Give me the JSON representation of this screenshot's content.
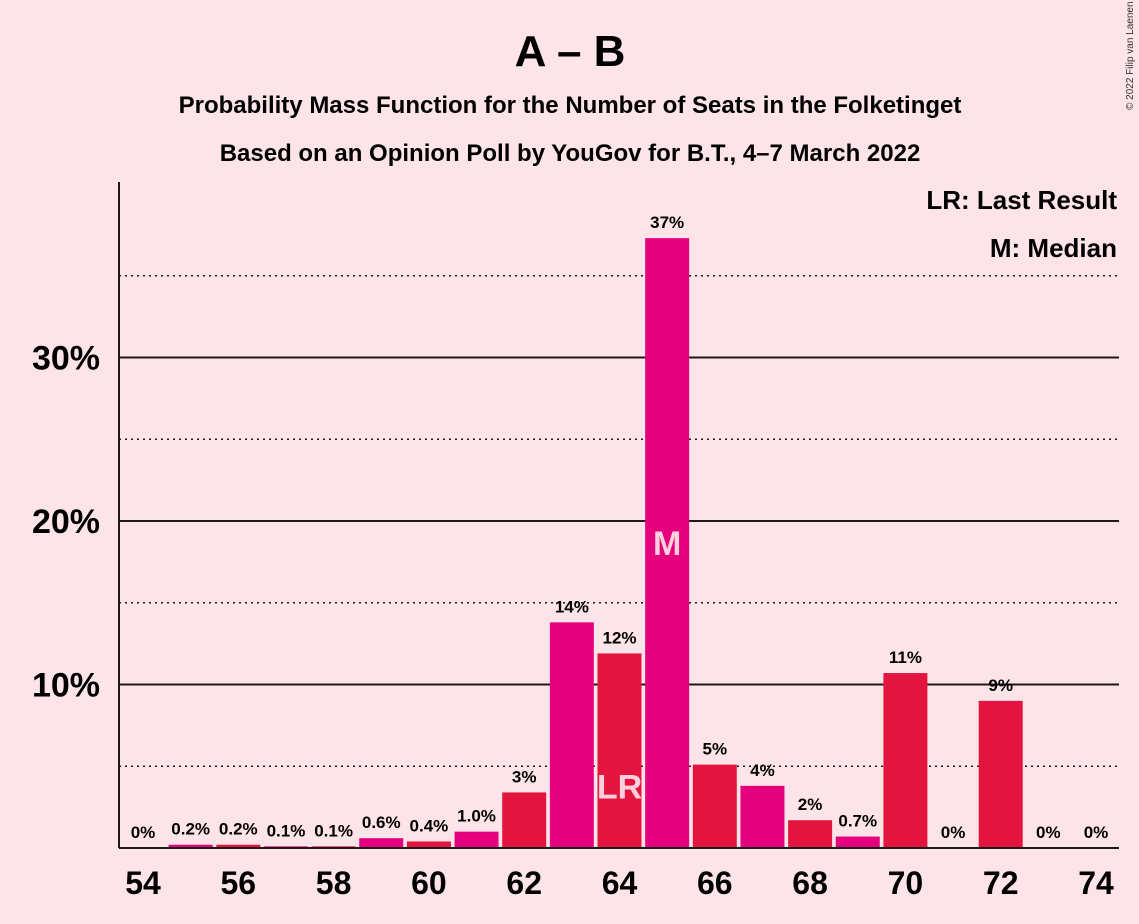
{
  "title": "A – B",
  "subtitle1": "Probability Mass Function for the Number of Seats in the Folketinget",
  "subtitle2": "Based on an Opinion Poll by YouGov for B.T., 4–7 March 2022",
  "copyright": "© 2022 Filip van Laenen",
  "legend": {
    "last_result": "LR: Last Result",
    "median": "M: Median"
  },
  "colors": {
    "background": "#fde4e8",
    "bar_magenta": "#e5007e",
    "bar_red": "#e3143d",
    "marker_text": "#ffd0dc"
  },
  "chart_data": {
    "type": "bar",
    "x": [
      54,
      55,
      56,
      57,
      58,
      59,
      60,
      61,
      62,
      63,
      64,
      65,
      66,
      67,
      68,
      69,
      70,
      71,
      72,
      73,
      74
    ],
    "values": [
      0,
      0.2,
      0.2,
      0.1,
      0.1,
      0.6,
      0.4,
      1.0,
      3.4,
      13.8,
      11.9,
      37.3,
      5.1,
      3.8,
      1.7,
      0.7,
      10.7,
      0,
      9.0,
      0,
      0
    ],
    "value_labels": [
      "0%",
      "0.2%",
      "0.2%",
      "0.1%",
      "0.1%",
      "0.6%",
      "0.4%",
      "1.0%",
      "3%",
      "14%",
      "12%",
      "37%",
      "5%",
      "4%",
      "2%",
      "0.7%",
      "11%",
      "0%",
      "9%",
      "0%",
      "0%"
    ],
    "bar_colors": [
      "red",
      "magenta",
      "red",
      "magenta",
      "red",
      "magenta",
      "red",
      "magenta",
      "red",
      "magenta",
      "red",
      "magenta",
      "red",
      "magenta",
      "red",
      "magenta",
      "red",
      "magenta",
      "red",
      "magenta",
      "red"
    ],
    "x_tick_labels": [
      "54",
      "56",
      "58",
      "60",
      "62",
      "64",
      "66",
      "68",
      "70",
      "72",
      "74"
    ],
    "y_ticks": [
      10,
      20,
      30
    ],
    "y_tick_labels": [
      "10%",
      "20%",
      "30%"
    ],
    "y_minor_ticks": [
      5,
      15,
      25,
      35
    ],
    "ylim": [
      0,
      40
    ],
    "last_result_seat": 64,
    "last_result_label": "LR",
    "median_seat": 65,
    "median_label": "M",
    "legend_position": "top-right"
  }
}
